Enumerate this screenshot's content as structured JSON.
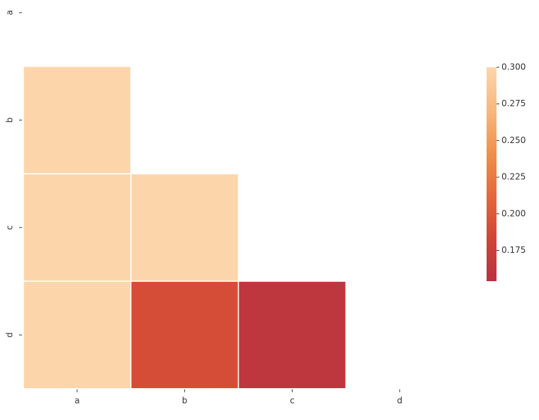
{
  "chart_data": {
    "type": "heatmap",
    "x_categories": [
      "a",
      "b",
      "c",
      "d"
    ],
    "y_categories": [
      "a",
      "b",
      "c",
      "d"
    ],
    "values": [
      [
        null,
        null,
        null,
        null
      ],
      [
        0.3,
        null,
        null,
        null
      ],
      [
        0.3,
        0.3,
        null,
        null
      ],
      [
        0.3,
        0.19,
        0.16,
        null
      ]
    ],
    "clim": [
      0.154,
      0.3
    ],
    "cticks": [
      {
        "value": 0.175,
        "label": "0.175"
      },
      {
        "value": 0.2,
        "label": "0.200"
      },
      {
        "value": 0.225,
        "label": "0.225"
      },
      {
        "value": 0.25,
        "label": "0.250"
      },
      {
        "value": 0.275,
        "label": "0.275"
      },
      {
        "value": 0.3,
        "label": "0.300"
      }
    ],
    "colormap": [
      "#b93240",
      "#d04535",
      "#e5683a",
      "#f0904a",
      "#f8b87e",
      "#fdd5ab"
    ]
  }
}
